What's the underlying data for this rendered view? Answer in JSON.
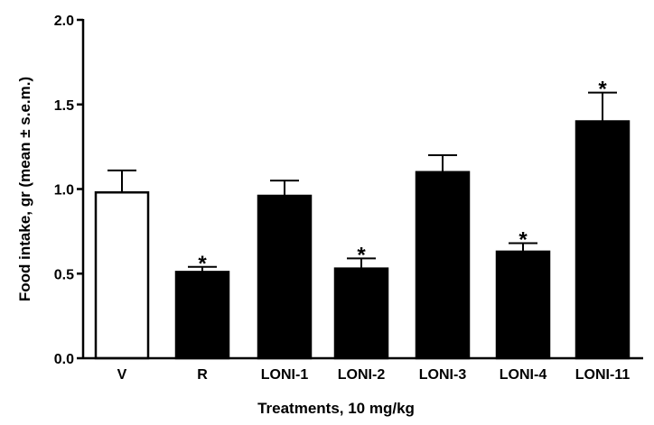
{
  "chart_data": {
    "type": "bar",
    "title": "",
    "xlabel": "Treatments, 10 mg/kg",
    "ylabel": "Food intake, gr (mean ± s.e.m.)",
    "ylim": [
      0,
      2.0
    ],
    "yticks": [
      "0.0",
      "0.5",
      "1.0",
      "1.5",
      "2.0"
    ],
    "categories": [
      "V",
      "R",
      "LONI-1",
      "LONI-2",
      "LONI-3",
      "LONI-4",
      "LONI-11"
    ],
    "values": [
      0.98,
      0.51,
      0.96,
      0.53,
      1.1,
      0.63,
      1.4
    ],
    "errors": [
      0.13,
      0.03,
      0.09,
      0.06,
      0.1,
      0.05,
      0.17
    ],
    "significant": [
      false,
      true,
      false,
      true,
      false,
      true,
      true
    ],
    "significance_marker": "*",
    "bar_fills": [
      "#ffffff",
      "#000000",
      "#000000",
      "#000000",
      "#000000",
      "#000000",
      "#000000"
    ],
    "bar_stroke": "#000000"
  }
}
